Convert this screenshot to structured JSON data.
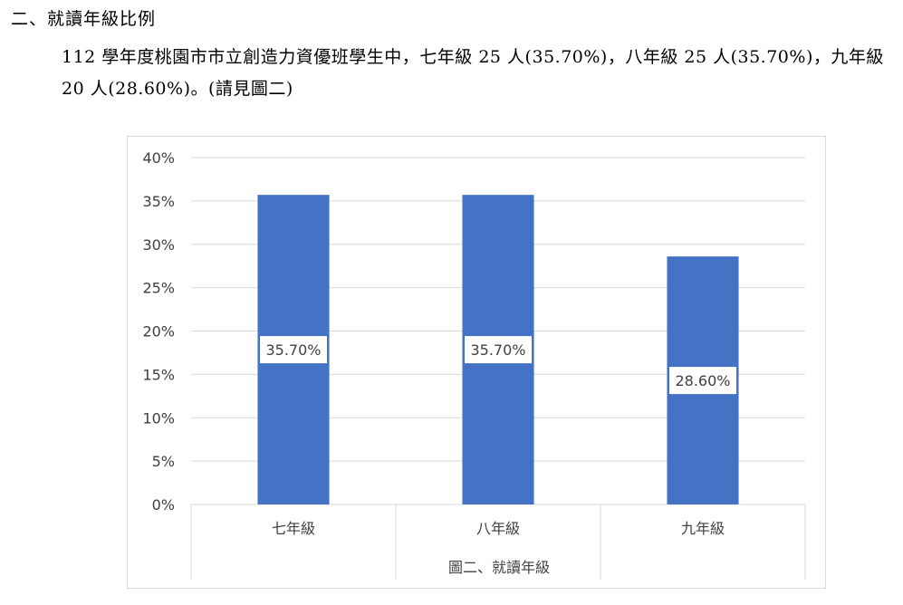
{
  "section": {
    "heading": "二、就讀年級比例",
    "paragraph": "112 學年度桃園市市立創造力資優班學生中，七年級 25 人(35.70%)，八年級 25 人(35.70%)，九年級 20 人(28.60%)。(請見圖二)"
  },
  "chart_data": {
    "type": "bar",
    "categories": [
      "七年級",
      "八年級",
      "九年級"
    ],
    "values": [
      35.7,
      35.7,
      28.6
    ],
    "data_labels": [
      "35.70%",
      "35.70%",
      "28.60%"
    ],
    "y_ticks": [
      "0%",
      "5%",
      "10%",
      "15%",
      "20%",
      "25%",
      "30%",
      "35%",
      "40%"
    ],
    "ylim": [
      0,
      40
    ],
    "xlabel": "圖二、就讀年級",
    "ylabel": "",
    "title": "",
    "grid": true,
    "colors": {
      "bar": "#4472c4",
      "grid": "#d9d9d9",
      "text": "#404040"
    }
  }
}
